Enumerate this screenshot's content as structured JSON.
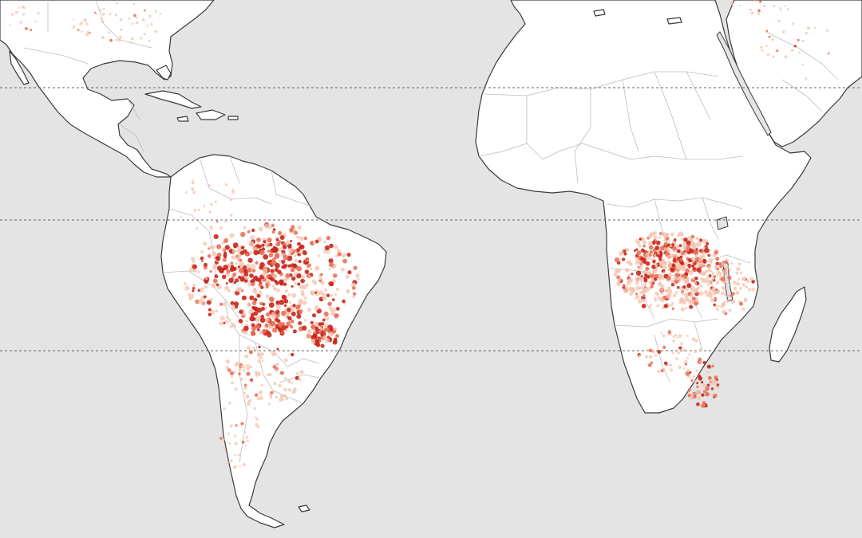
{
  "map": {
    "colors": {
      "ocean": "#e4e4e4",
      "land": "#ffffff",
      "coastline": "#3a3a3a",
      "border": "#bdbdbd",
      "latitude_line": "#666666",
      "fire_low": "#f4c3ad",
      "fire_mid": "#e8715a",
      "fire_high": "#c8261c"
    },
    "reference_lines": [
      {
        "name": "tropic-of-cancer"
      },
      {
        "name": "equator"
      },
      {
        "name": "tropic-of-capricorn"
      }
    ],
    "fire_levels": [
      "low",
      "mid",
      "high"
    ],
    "regions_shown": [
      "north-america",
      "central-america",
      "caribbean",
      "south-america",
      "africa",
      "madagascar",
      "arabian-peninsula",
      "mediterranean"
    ]
  }
}
